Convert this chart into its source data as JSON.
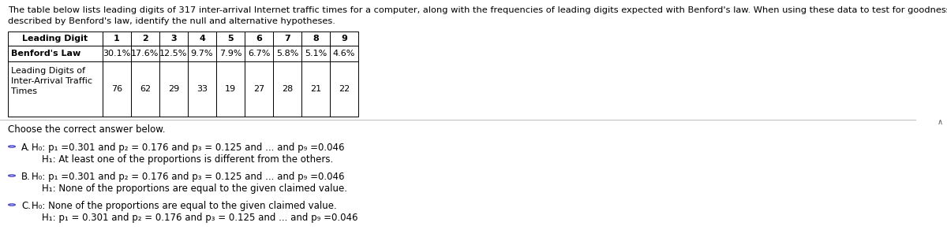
{
  "header_line1": "The table below lists leading digits of 317 inter-arrival Internet traffic times for a computer, along with the frequencies of leading digits expected with Benford's law. When using these data to test for goodness-of-fit with the distribution",
  "header_line2": "described by Benford's law, identify the null and alternative hypotheses.",
  "table": {
    "col_headers": [
      "Leading Digit",
      "1",
      "2",
      "3",
      "4",
      "5",
      "6",
      "7",
      "8",
      "9"
    ],
    "row1_label": "Benford's Law",
    "row1_values": [
      "30.1%",
      "17.6%",
      "12.5%",
      "9.7%",
      "7.9%",
      "6.7%",
      "5.8%",
      "5.1%",
      "4.6%"
    ],
    "row2_label_lines": [
      "Leading Digits of",
      "Inter-Arrival Traffic",
      "Times"
    ],
    "row2_values": [
      "76",
      "62",
      "29",
      "33",
      "19",
      "27",
      "28",
      "21",
      "22"
    ]
  },
  "choose_text": "Choose the correct answer below.",
  "options": [
    {
      "letter": "A.",
      "h0": "H₀: p₁ =0.301 and p₂ = 0.176 and p₃ = 0.125 and ... and p₉ =0.046",
      "h1": "H₁: At least one of the proportions is different from the others."
    },
    {
      "letter": "B.",
      "h0": "H₀: p₁ =0.301 and p₂ = 0.176 and p₃ = 0.125 and ... and p₉ =0.046",
      "h1": "H₁: None of the proportions are equal to the given claimed value."
    },
    {
      "letter": "C.",
      "h0": "H₀: None of the proportions are equal to the given claimed value.",
      "h1": "H₁: p₁ = 0.301 and p₂ = 0.176 and p₃ = 0.125 and ... and p₉ =0.046"
    }
  ],
  "bg_color": "#FFFFFF",
  "text_color": "#000000",
  "circle_color": "#4444CC",
  "scrollbar_color": "#E0E0E0",
  "scrollbar_arrow_color": "#555555",
  "font_size_header": 8.2,
  "font_size_table": 8.0,
  "font_size_table_bold": 8.0,
  "font_size_options": 8.5,
  "font_size_choose": 8.5
}
